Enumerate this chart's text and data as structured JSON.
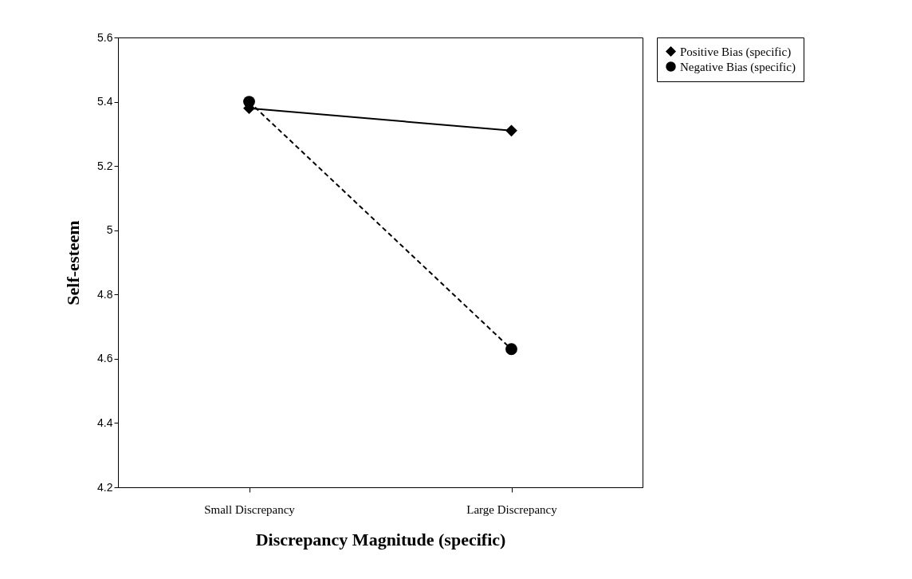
{
  "chart_data": {
    "type": "line",
    "xlabel": "Discrepancy Magnitude (specific)",
    "ylabel": "Self-esteem",
    "categories": [
      "Small Discrepancy",
      "Large Discrepancy"
    ],
    "series": [
      {
        "name": "Positive Bias (specific)",
        "color": "#000000",
        "marker": "diamond",
        "line_style": "solid",
        "values": [
          5.38,
          5.31
        ]
      },
      {
        "name": "Negative Bias (specific)",
        "color": "#000000",
        "marker": "circle",
        "line_style": "dashed",
        "values": [
          5.4,
          4.63
        ]
      }
    ],
    "ylim": [
      4.2,
      5.6
    ],
    "yticks": [
      4.2,
      4.4,
      4.6,
      4.8,
      5,
      5.2,
      5.4,
      5.6
    ],
    "grid": false,
    "legend": "top right"
  }
}
